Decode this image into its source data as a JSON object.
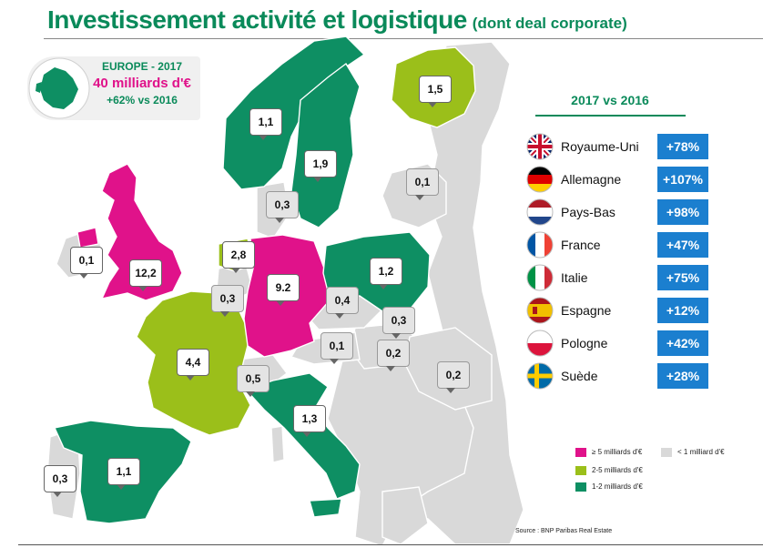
{
  "title": {
    "main": "Investissement activité et logistique",
    "sub": "(dont deal corporate)"
  },
  "europe_box": {
    "line1": "EUROPE - 2017",
    "line2": "40 milliards d'€",
    "line3": "+62% vs 2016"
  },
  "map_values": {
    "uk": "12,2",
    "ireland": "0,1",
    "portugal": "0,3",
    "spain": "1,1",
    "france": "4,4",
    "belgium": "0,3",
    "netherlands": "2,8",
    "germany": "9.2",
    "denmark": "0,3",
    "norway": "1,1",
    "sweden": "1,9",
    "finland": "1,5",
    "baltics": "0,1",
    "poland": "1,2",
    "czechia": "0,4",
    "slovakia": "0,3",
    "austria": "0,1",
    "hungary": "0,2",
    "romania": "0,2",
    "switzerland": "0,5",
    "italy": "1,3"
  },
  "panel": {
    "title": "2017 vs 2016",
    "rows": [
      {
        "country": "Royaume-Uni",
        "change": "+78%",
        "flag": "uk-flag-icon"
      },
      {
        "country": "Allemagne",
        "change": "+107%",
        "flag": "germany-flag-icon"
      },
      {
        "country": "Pays-Bas",
        "change": "+98%",
        "flag": "netherlands-flag-icon"
      },
      {
        "country": "France",
        "change": "+47%",
        "flag": "france-flag-icon"
      },
      {
        "country": "Italie",
        "change": "+75%",
        "flag": "italy-flag-icon"
      },
      {
        "country": "Espagne",
        "change": "+12%",
        "flag": "spain-flag-icon"
      },
      {
        "country": "Pologne",
        "change": "+42%",
        "flag": "poland-flag-icon"
      },
      {
        "country": "Suède",
        "change": "+28%",
        "flag": "sweden-flag-icon"
      }
    ]
  },
  "legend": {
    "pink": "≥ 5 milliards d'€",
    "grey": "< 1 milliard d'€",
    "lime": "2-5 milliards d'€",
    "green": "1-2 milliards d'€"
  },
  "colors": {
    "pink": "#e0128a",
    "lime": "#9bbf1a",
    "green": "#0e8f63",
    "grey": "#d9d9d9",
    "accent": "#1b7fcf"
  },
  "source": "Source : BNP Paribas Real Estate"
}
